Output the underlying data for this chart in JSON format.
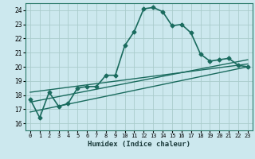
{
  "xlabel": "Humidex (Indice chaleur)",
  "background_color": "#cce8ee",
  "grid_color": "#aacccc",
  "line_color": "#1a6b5e",
  "x_ticks": [
    0,
    1,
    2,
    3,
    4,
    5,
    6,
    7,
    8,
    9,
    10,
    11,
    12,
    13,
    14,
    15,
    16,
    17,
    18,
    19,
    20,
    21,
    22,
    23
  ],
  "y_ticks": [
    16,
    17,
    18,
    19,
    20,
    21,
    22,
    23,
    24
  ],
  "xlim": [
    -0.5,
    23.5
  ],
  "ylim": [
    15.5,
    24.5
  ],
  "series": [
    {
      "x": [
        0,
        1,
        2,
        3,
        4,
        5,
        6,
        7,
        8,
        9,
        10,
        11,
        12,
        13,
        14,
        15,
        16,
        17,
        18,
        19,
        20,
        21,
        22,
        23
      ],
      "y": [
        17.7,
        16.4,
        18.2,
        17.2,
        17.4,
        18.5,
        18.6,
        18.6,
        19.4,
        19.4,
        21.5,
        22.5,
        24.1,
        24.2,
        23.9,
        22.9,
        23.0,
        22.4,
        20.9,
        20.4,
        20.5,
        20.6,
        20.1,
        20.0
      ],
      "marker": "D",
      "markersize": 2.5,
      "linewidth": 1.2
    },
    {
      "x": [
        0,
        23
      ],
      "y": [
        16.8,
        20.0
      ],
      "marker": null,
      "linewidth": 1.0
    },
    {
      "x": [
        0,
        23
      ],
      "y": [
        17.5,
        20.5
      ],
      "marker": null,
      "linewidth": 1.0
    },
    {
      "x": [
        0,
        23
      ],
      "y": [
        18.2,
        20.2
      ],
      "marker": null,
      "linewidth": 1.0
    }
  ]
}
